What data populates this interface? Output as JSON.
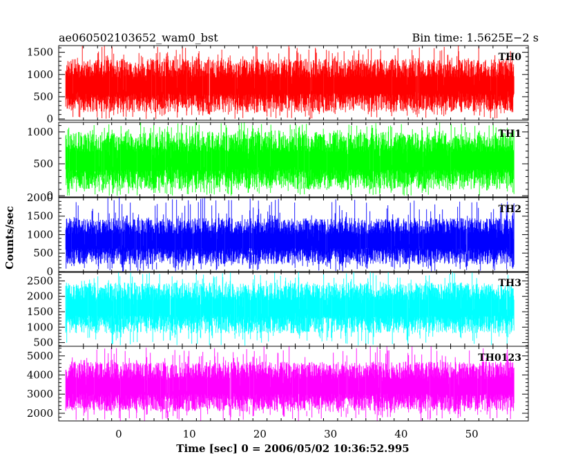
{
  "header": {
    "title": "ae060502103652_wam0_bst",
    "bin_time": "Bin time: 1.5625E−2 s"
  },
  "chart_data": {
    "type": "line",
    "title": "ae060502103652_wam0_bst",
    "xlabel": "Time [sec] 0 = 2006/05/02 10:36:52.995",
    "ylabel": "Counts/sec",
    "xlim": [
      -8.5,
      58
    ],
    "x_range_data": [
      -7.5,
      56
    ],
    "x_ticks": [
      0,
      10,
      20,
      30,
      40,
      50
    ],
    "x_tick_labels": [
      "0",
      "10",
      "20",
      "30",
      "40",
      "50"
    ],
    "bin_time_s": 0.015625,
    "panels": [
      {
        "name": "TH0",
        "color": "#ff0000",
        "ylim": [
          -30,
          1650
        ],
        "y_ticks": [
          0,
          500,
          1000,
          1500
        ],
        "y_tick_labels": [
          "0",
          "500",
          "1000",
          "1500"
        ],
        "typical_range": [
          150,
          1350
        ],
        "peak_range": [
          0,
          1650
        ]
      },
      {
        "name": "TH1",
        "color": "#00ff00",
        "ylim": [
          -20,
          1150
        ],
        "y_ticks": [
          0,
          500,
          1000
        ],
        "y_tick_labels": [
          "0",
          "500",
          "1000"
        ],
        "typical_range": [
          100,
          1000
        ],
        "peak_range": [
          0,
          1150
        ]
      },
      {
        "name": "TH2",
        "color": "#0000ff",
        "ylim": [
          -20,
          2000
        ],
        "y_ticks": [
          0,
          500,
          1000,
          1500,
          2000
        ],
        "y_tick_labels": [
          "0",
          "500",
          "1000",
          "1500",
          "2000"
        ],
        "typical_range": [
          200,
          1450
        ],
        "peak_range": [
          0,
          2000
        ]
      },
      {
        "name": "TH3",
        "color": "#00ffff",
        "ylim": [
          380,
          2800
        ],
        "y_ticks": [
          500,
          1000,
          1500,
          2000,
          2500
        ],
        "y_tick_labels": [
          "500",
          "1000",
          "1500",
          "2000",
          "2500"
        ],
        "typical_range": [
          800,
          2450
        ],
        "peak_range": [
          400,
          2800
        ]
      },
      {
        "name": "TH0123",
        "color": "#ff00ff",
        "ylim": [
          1600,
          5500
        ],
        "y_ticks": [
          2000,
          3000,
          4000,
          5000
        ],
        "y_tick_labels": [
          "2000",
          "3000",
          "4000",
          "5000"
        ],
        "typical_range": [
          2100,
          4700
        ],
        "peak_range": [
          1600,
          5500
        ]
      }
    ]
  }
}
